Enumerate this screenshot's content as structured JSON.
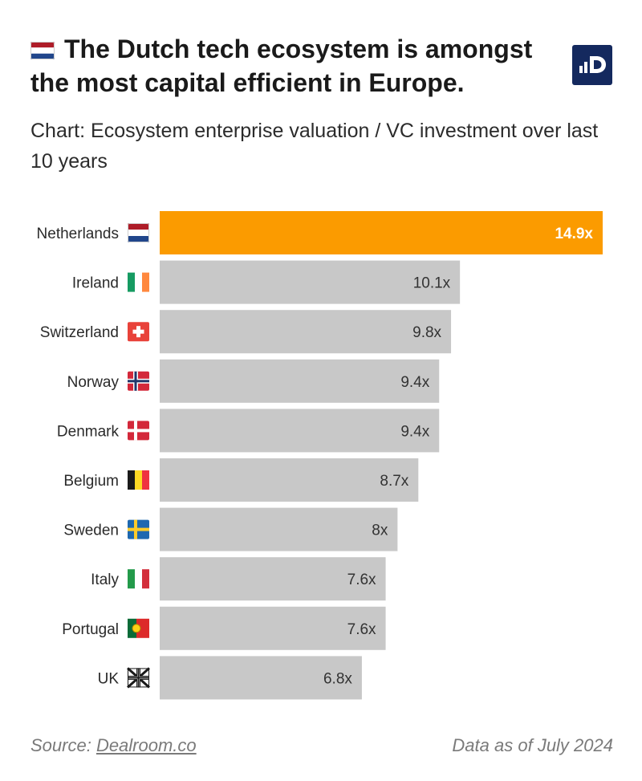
{
  "header": {
    "title": "The Dutch tech ecosystem is amongst the most capital efficient in Europe.",
    "subtitle": "Chart: Ecosystem enterprise valuation / VC investment over last 10 years",
    "logo_icon": "dealroom-logo-icon"
  },
  "colors": {
    "highlight": "#fb9b00",
    "bar": "#c8c8c8",
    "logo_bg": "#14295e"
  },
  "chart_data": {
    "type": "bar",
    "orientation": "horizontal",
    "title": "The Dutch tech ecosystem is amongst the most capital efficient in Europe.",
    "subtitle": "Chart: Ecosystem enterprise valuation / VC investment over last 10 years",
    "categories": [
      "Netherlands",
      "Ireland",
      "Switzerland",
      "Norway",
      "Denmark",
      "Belgium",
      "Sweden",
      "Italy",
      "Portugal",
      "UK"
    ],
    "values": [
      14.9,
      10.1,
      9.8,
      9.4,
      9.4,
      8.7,
      8,
      7.6,
      7.6,
      6.8
    ],
    "value_labels": [
      "14.9x",
      "10.1x",
      "9.8x",
      "9.4x",
      "9.4x",
      "8.7x",
      "8x",
      "7.6x",
      "7.6x",
      "6.8x"
    ],
    "flags": [
      "netherlands-flag-icon",
      "ireland-flag-icon",
      "switzerland-flag-icon",
      "norway-flag-icon",
      "denmark-flag-icon",
      "belgium-flag-icon",
      "sweden-flag-icon",
      "italy-flag-icon",
      "portugal-flag-icon",
      "uk-flag-icon"
    ],
    "highlight_category": "Netherlands",
    "xlim": [
      0,
      14.9
    ],
    "xlabel": "",
    "ylabel": "",
    "grid": false
  },
  "footer": {
    "source_prefix": "Source: ",
    "source_link": "Dealroom.co",
    "date": "Data as of July 2024"
  }
}
